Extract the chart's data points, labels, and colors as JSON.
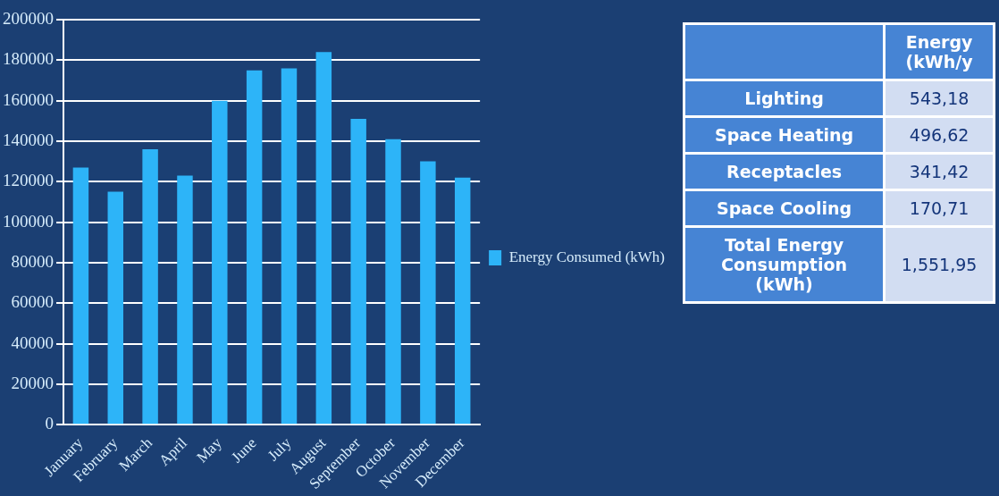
{
  "chart_data": [
    {
      "type": "bar",
      "categories": [
        "January",
        "February",
        "March",
        "April",
        "May",
        "June",
        "July",
        "August",
        "September",
        "October",
        "November",
        "December"
      ],
      "series": [
        {
          "name": "Energy Consumed (kWh)",
          "color": "#2db4f8",
          "values": [
            127000,
            115000,
            136000,
            123000,
            160000,
            175000,
            176000,
            184000,
            151000,
            141000,
            130000,
            122000
          ]
        }
      ],
      "ylim": [
        0,
        200000
      ],
      "yticks": [
        0,
        20000,
        40000,
        60000,
        80000,
        100000,
        120000,
        140000,
        160000,
        180000,
        200000
      ],
      "grid": "y",
      "legend": "right"
    },
    {
      "type": "other",
      "title": "Energy (kWh/y",
      "categories": [
        "Lighting",
        "Space Heating",
        "Receptacles",
        "Space Cooling",
        "Total Energy Consumption (kWh)"
      ],
      "value_labels": [
        "543,18",
        "496,62",
        "341,42",
        "170,71",
        "1,551,95"
      ]
    }
  ]
}
